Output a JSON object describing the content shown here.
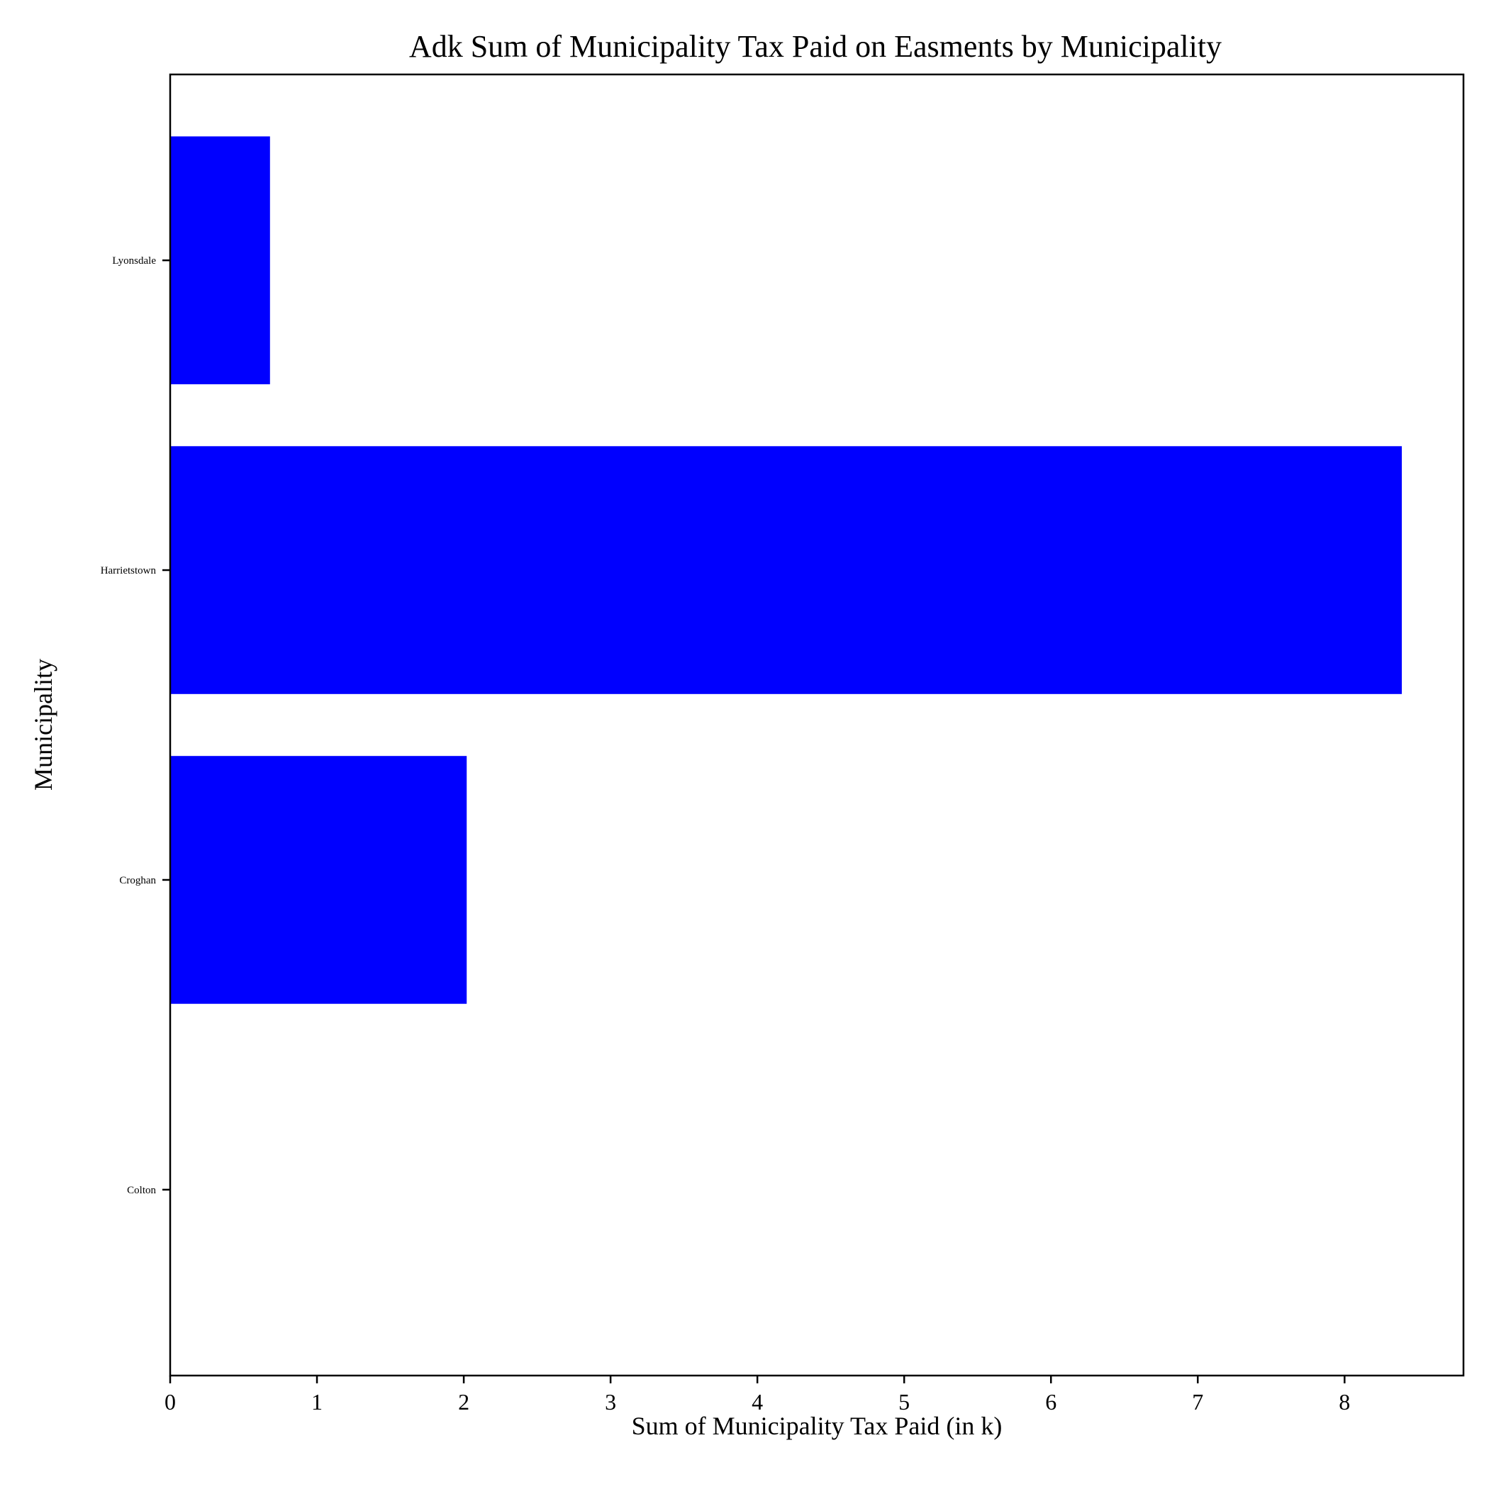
{
  "chart_data": {
    "type": "bar",
    "orientation": "horizontal",
    "title": "Adk Sum of Municipality Tax Paid on Easments by Municipality",
    "xlabel": "Sum of Municipality Tax Paid (in k)",
    "ylabel": "Municipality",
    "categories": [
      "Colton",
      "Croghan",
      "Harrietstown",
      "Lyonsdale"
    ],
    "values": [
      0,
      2.02,
      8.39,
      0.68
    ],
    "xlim": [
      0,
      8.81
    ],
    "xticks": [
      "0",
      "1",
      "2",
      "3",
      "4",
      "5",
      "6",
      "7",
      "8"
    ],
    "bar_color": "#0000ff",
    "grid": false,
    "legend": "none"
  }
}
